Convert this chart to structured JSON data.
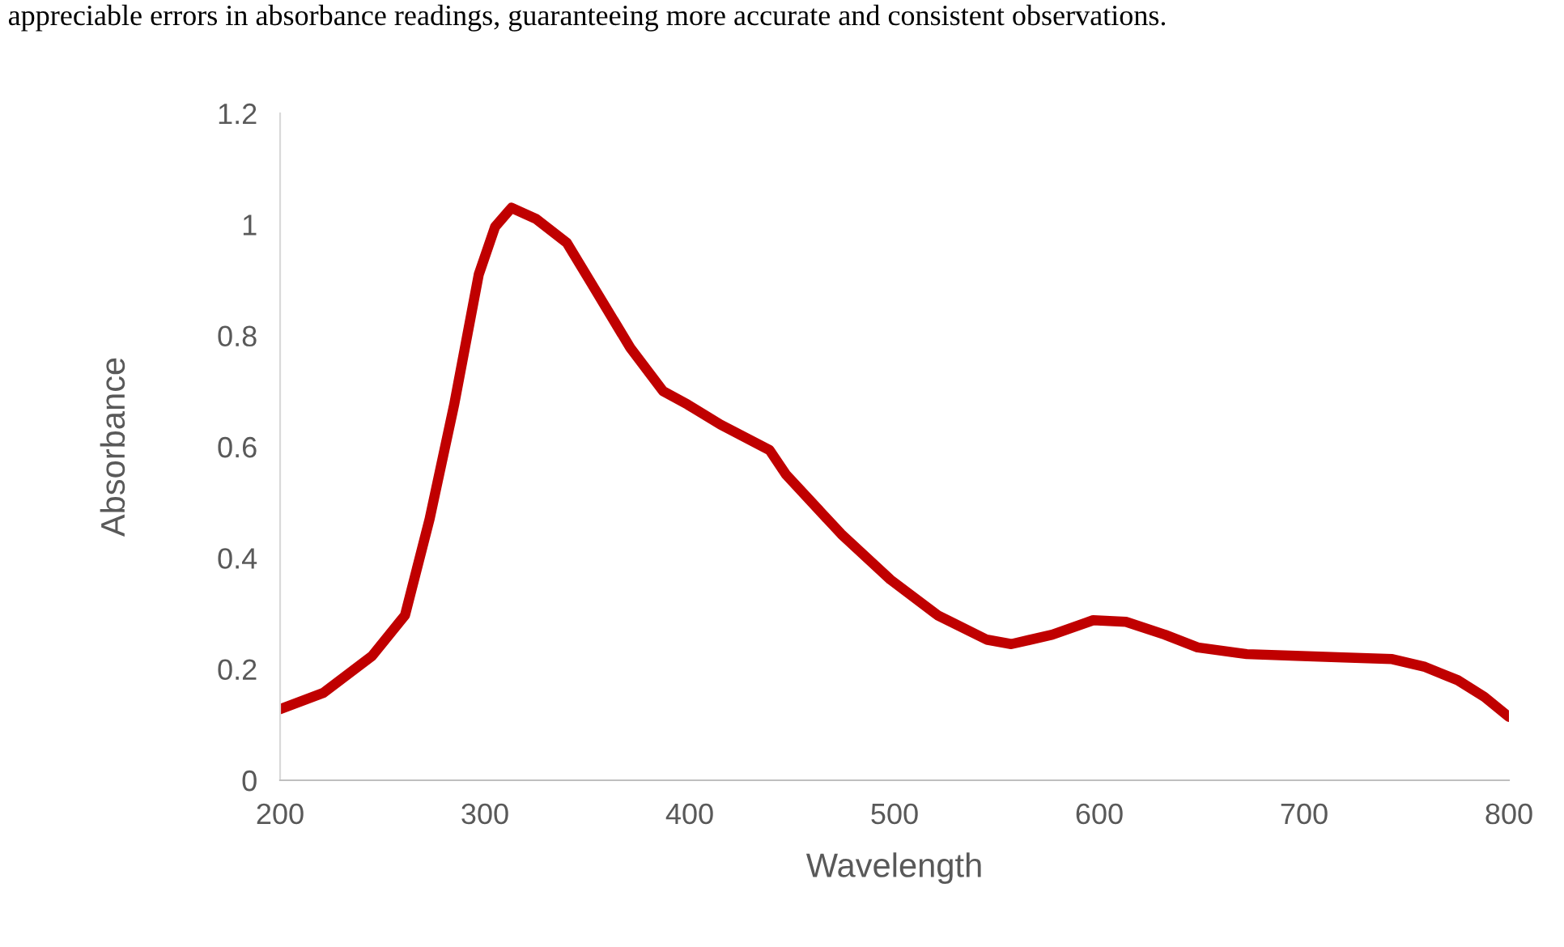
{
  "chart_data": {
    "type": "line",
    "xlabel": "Wavelength",
    "ylabel": "Absorbance",
    "annotations": [
      "appreciable errors in absorbance readings, guaranteeing more accurate and consistent observations."
    ],
    "series": [
      {
        "color": "#c00000",
        "x": [
          200,
          221,
          245,
          261,
          273,
          285,
          297,
          305,
          313,
          325,
          340,
          352,
          371,
          387,
          399,
          415,
          439,
          447,
          474,
          498,
          521,
          545,
          557,
          577,
          597,
          613,
          632,
          648,
          672,
          696,
          719,
          743,
          759,
          775,
          788,
          800
        ],
        "values": [
          0.128,
          0.157,
          0.224,
          0.297,
          0.47,
          0.676,
          0.91,
          0.996,
          1.03,
          1.01,
          0.967,
          0.894,
          0.778,
          0.7,
          0.676,
          0.64,
          0.594,
          0.55,
          0.443,
          0.361,
          0.297,
          0.253,
          0.245,
          0.262,
          0.288,
          0.285,
          0.262,
          0.239,
          0.227,
          0.224,
          0.221,
          0.218,
          0.204,
          0.18,
          0.15,
          0.114
        ]
      }
    ],
    "xlim": [
      200,
      800
    ],
    "xticks": [
      200,
      300,
      400,
      500,
      600,
      700,
      800
    ],
    "ylim": [
      0,
      1.2
    ],
    "yticks": [
      0,
      0.2,
      0.4,
      0.6,
      0.8,
      1,
      1.2
    ],
    "grid": false,
    "legend": false,
    "marker": "none",
    "line_style": "solid"
  }
}
